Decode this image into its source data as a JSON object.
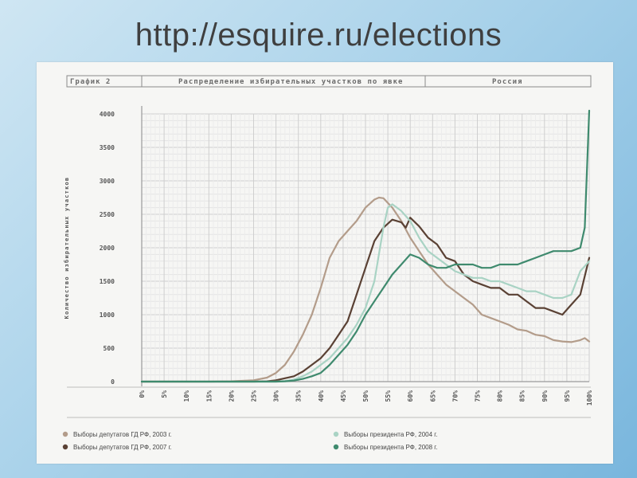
{
  "slide": {
    "title": "http://esquire.ru/elections"
  },
  "chart_data": {
    "type": "line",
    "header": {
      "left": "График 2",
      "center": "Распределение избирательных участков по явке",
      "right": "Россия"
    },
    "ylabel": "Количество избирательных участков",
    "xlabel": "",
    "ylim": [
      0,
      4000
    ],
    "yticks": [
      0,
      500,
      1000,
      1500,
      2000,
      2500,
      3000,
      3500,
      4000
    ],
    "xlim": [
      0,
      100
    ],
    "xtick_labels": [
      "0%",
      "5%",
      "10%",
      "15%",
      "20%",
      "25%",
      "30%",
      "35%",
      "40%",
      "45%",
      "50%",
      "55%",
      "60%",
      "65%",
      "70%",
      "75%",
      "80%",
      "85%",
      "90%",
      "95%",
      "100%"
    ],
    "grid": true,
    "legend_position": "bottom",
    "series": [
      {
        "name": "Выборы депутатов ГД РФ, 2003 г.",
        "color": "#b39c8a",
        "x": [
          0,
          5,
          10,
          15,
          20,
          25,
          28,
          30,
          32,
          34,
          36,
          38,
          40,
          42,
          44,
          46,
          48,
          50,
          52,
          53,
          54,
          56,
          58,
          60,
          62,
          64,
          66,
          68,
          70,
          72,
          74,
          76,
          78,
          80,
          82,
          84,
          86,
          88,
          90,
          92,
          94,
          96,
          98,
          99,
          100
        ],
        "y": [
          0,
          0,
          0,
          0,
          5,
          20,
          60,
          130,
          250,
          450,
          700,
          1000,
          1400,
          1850,
          2100,
          2250,
          2400,
          2600,
          2720,
          2750,
          2740,
          2600,
          2400,
          2150,
          1950,
          1750,
          1600,
          1450,
          1350,
          1250,
          1150,
          1000,
          950,
          900,
          850,
          780,
          760,
          700,
          680,
          620,
          600,
          590,
          620,
          650,
          600
        ]
      },
      {
        "name": "Выборы депутатов ГД РФ, 2007 г.",
        "color": "#5a4134",
        "x": [
          0,
          5,
          10,
          15,
          20,
          25,
          28,
          30,
          32,
          34,
          36,
          38,
          40,
          42,
          44,
          46,
          48,
          50,
          52,
          54,
          56,
          58,
          59,
          60,
          62,
          64,
          66,
          68,
          70,
          72,
          74,
          76,
          78,
          80,
          82,
          84,
          86,
          88,
          90,
          92,
          94,
          96,
          98,
          100
        ],
        "y": [
          0,
          0,
          0,
          0,
          0,
          0,
          5,
          20,
          50,
          80,
          150,
          250,
          350,
          500,
          700,
          900,
          1300,
          1700,
          2100,
          2300,
          2420,
          2380,
          2300,
          2450,
          2320,
          2150,
          2050,
          1850,
          1800,
          1600,
          1500,
          1450,
          1400,
          1400,
          1300,
          1300,
          1200,
          1100,
          1100,
          1050,
          1000,
          1150,
          1300,
          1850
        ]
      },
      {
        "name": "Выборы президента РФ, 2004 г.",
        "color": "#a9d3c4",
        "x": [
          0,
          5,
          10,
          15,
          20,
          25,
          30,
          32,
          34,
          36,
          38,
          40,
          42,
          44,
          46,
          48,
          50,
          52,
          54,
          55,
          56,
          58,
          60,
          62,
          64,
          66,
          68,
          70,
          72,
          74,
          76,
          78,
          80,
          82,
          84,
          86,
          88,
          90,
          92,
          94,
          96,
          98,
          100
        ],
        "y": [
          0,
          0,
          0,
          0,
          0,
          0,
          0,
          10,
          30,
          80,
          150,
          250,
          350,
          500,
          650,
          850,
          1100,
          1500,
          2300,
          2600,
          2650,
          2550,
          2400,
          2150,
          1950,
          1850,
          1750,
          1650,
          1600,
          1550,
          1550,
          1500,
          1500,
          1450,
          1400,
          1350,
          1350,
          1300,
          1250,
          1250,
          1300,
          1650,
          1800
        ]
      },
      {
        "name": "Выборы президента РФ, 2008 г.",
        "color": "#3f8a6e",
        "x": [
          0,
          5,
          10,
          15,
          20,
          25,
          30,
          32,
          34,
          36,
          38,
          40,
          42,
          44,
          46,
          48,
          50,
          52,
          54,
          56,
          58,
          60,
          62,
          64,
          66,
          68,
          70,
          72,
          74,
          76,
          78,
          80,
          82,
          84,
          86,
          88,
          90,
          92,
          94,
          96,
          98,
          99,
          100
        ],
        "y": [
          0,
          0,
          0,
          0,
          0,
          0,
          0,
          5,
          15,
          40,
          80,
          130,
          250,
          400,
          550,
          750,
          1000,
          1200,
          1400,
          1600,
          1750,
          1900,
          1850,
          1750,
          1700,
          1700,
          1750,
          1750,
          1750,
          1700,
          1700,
          1750,
          1750,
          1750,
          1800,
          1850,
          1900,
          1950,
          1950,
          1950,
          2000,
          2300,
          4050
        ]
      }
    ]
  }
}
